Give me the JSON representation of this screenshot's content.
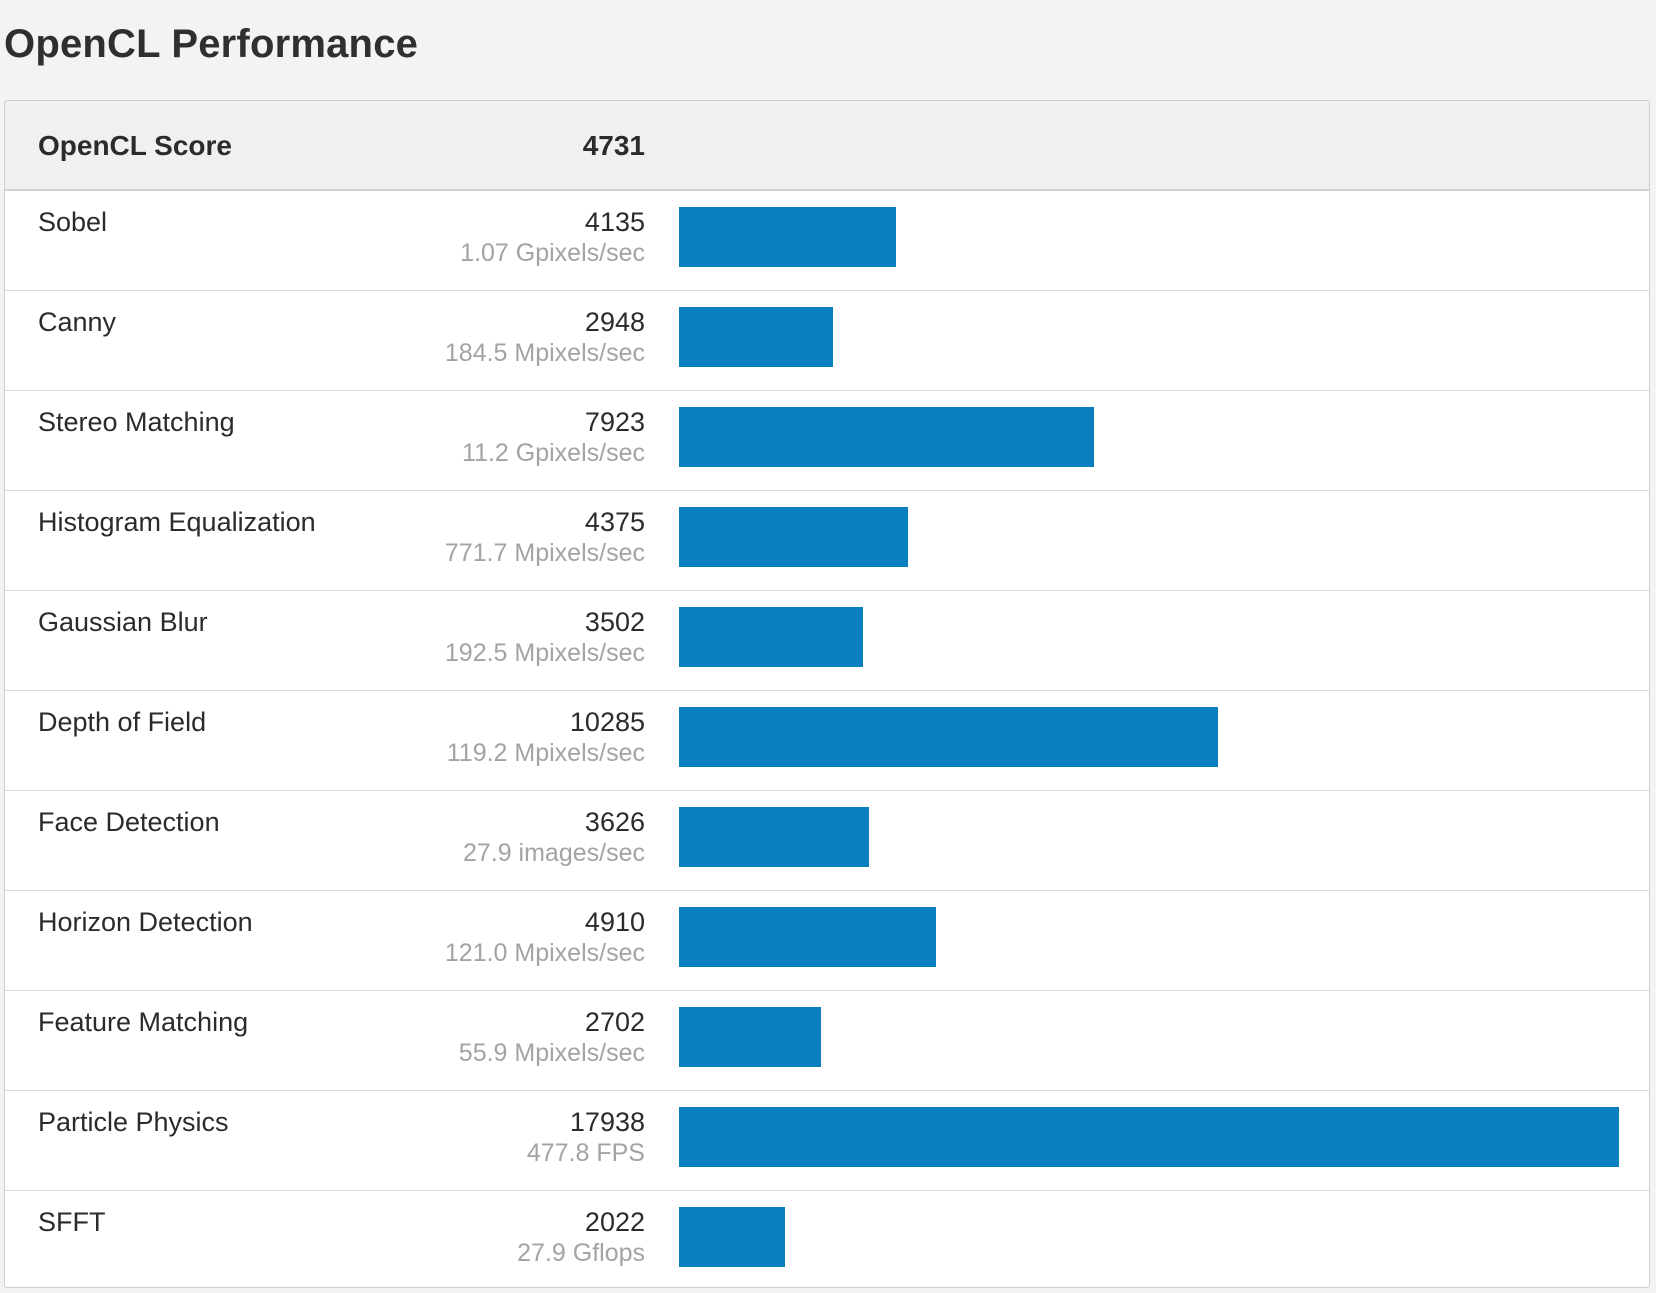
{
  "page": {
    "title": "OpenCL Performance"
  },
  "summary": {
    "label": "OpenCL Score",
    "score": "4731"
  },
  "colors": {
    "bar": "#0a7fc0",
    "header_bg": "#f0f0f0",
    "muted_text": "#a3a3a3"
  },
  "benchmarks": [
    {
      "name": "Sobel",
      "score": "4135",
      "rate": "1.07 Gpixels/sec"
    },
    {
      "name": "Canny",
      "score": "2948",
      "rate": "184.5 Mpixels/sec"
    },
    {
      "name": "Stereo Matching",
      "score": "7923",
      "rate": "11.2 Gpixels/sec"
    },
    {
      "name": "Histogram Equalization",
      "score": "4375",
      "rate": "771.7 Mpixels/sec"
    },
    {
      "name": "Gaussian Blur",
      "score": "3502",
      "rate": "192.5 Mpixels/sec"
    },
    {
      "name": "Depth of Field",
      "score": "10285",
      "rate": "119.2 Mpixels/sec"
    },
    {
      "name": "Face Detection",
      "score": "3626",
      "rate": "27.9 images/sec"
    },
    {
      "name": "Horizon Detection",
      "score": "4910",
      "rate": "121.0 Mpixels/sec"
    },
    {
      "name": "Feature Matching",
      "score": "2702",
      "rate": "55.9 Mpixels/sec"
    },
    {
      "name": "Particle Physics",
      "score": "17938",
      "rate": "477.8 FPS"
    },
    {
      "name": "SFFT",
      "score": "2022",
      "rate": "27.9 Gflops"
    }
  ],
  "chart_data": {
    "type": "bar",
    "categories": [
      "Sobel",
      "Canny",
      "Stereo Matching",
      "Histogram Equalization",
      "Gaussian Blur",
      "Depth of Field",
      "Face Detection",
      "Horizon Detection",
      "Feature Matching",
      "Particle Physics",
      "SFFT"
    ],
    "values": [
      4135,
      2948,
      7923,
      4375,
      3502,
      10285,
      3626,
      4910,
      2702,
      17938,
      2022
    ],
    "orientation": "horizontal",
    "title": "",
    "xlabel": "",
    "ylabel": ""
  }
}
